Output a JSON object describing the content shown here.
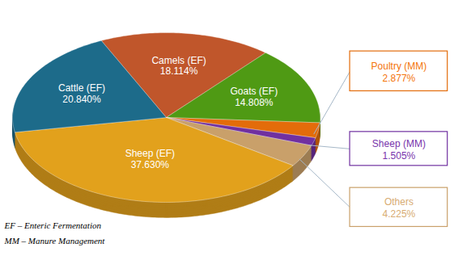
{
  "chart_data": {
    "type": "pie",
    "categories": [
      "Camels (EF)",
      "Goats (EF)",
      "Poultry (MM)",
      "Sheep (MM)",
      "Others",
      "Sheep (EF)",
      "Cattle (EF)"
    ],
    "values": [
      18.114,
      14.808,
      2.877,
      1.505,
      4.225,
      37.63,
      20.84
    ],
    "value_labels": [
      "18.114%",
      "14.808%",
      "2.877%",
      "1.505%",
      "4.225%",
      "37.630%",
      "20.840%"
    ],
    "colors": [
      "#c0562b",
      "#4f9a14",
      "#e36c0a",
      "#7030a0",
      "#c9a06a",
      "#e2a11c",
      "#1d6b8a"
    ],
    "data_labels": true,
    "annotations": [
      "EF – Enteric Fermentation",
      "MM – Manure Management"
    ]
  }
}
